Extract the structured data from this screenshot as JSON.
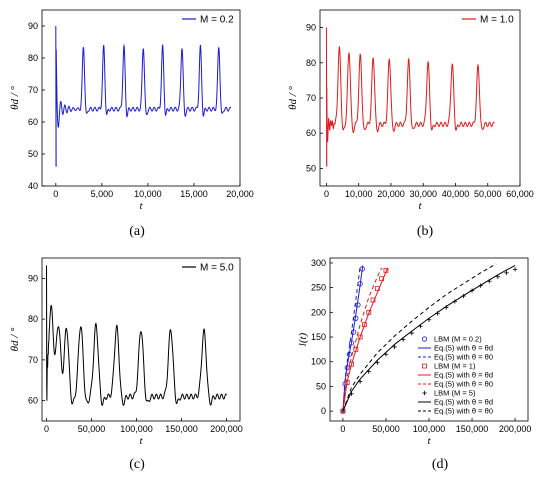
{
  "chart_data": [
    {
      "panel_label": "(a)",
      "type": "line",
      "xlabel": "t",
      "ylabel": "θd / °",
      "xlim": [
        -1500,
        20000
      ],
      "ylim": [
        40,
        95
      ],
      "xticks": [
        0,
        5000,
        10000,
        15000,
        20000
      ],
      "xtick_labels": [
        "0",
        "5,000",
        "10,000",
        "15,000",
        "20,000"
      ],
      "yticks": [
        40,
        50,
        60,
        70,
        80,
        90
      ],
      "ytick_labels": [
        "40",
        "50",
        "60",
        "70",
        "80",
        "90"
      ],
      "grid": false,
      "legend_position": "top-right",
      "series": [
        {
          "name": "M = 0.2",
          "color": "#1b1bd6",
          "start_peak": 90,
          "start_min": 46,
          "baseline": 64,
          "x_end": 19000,
          "peak_times": [
            3000,
            5200,
            7400,
            9500,
            11600,
            13700,
            15700,
            17700
          ],
          "peak_height": 83.5
        }
      ]
    },
    {
      "panel_label": "(b)",
      "type": "line",
      "xlabel": "t",
      "ylabel": "θd / °",
      "xlim": [
        -2000,
        60000
      ],
      "ylim": [
        45,
        95
      ],
      "xticks": [
        0,
        10000,
        20000,
        30000,
        40000,
        50000,
        60000
      ],
      "xtick_labels": [
        "0",
        "10,000",
        "20,000",
        "30,000",
        "40,000",
        "50,000",
        "60,000"
      ],
      "yticks": [
        50,
        60,
        70,
        80,
        90
      ],
      "ytick_labels": [
        "50",
        "60",
        "70",
        "80",
        "90"
      ],
      "grid": false,
      "legend_position": "top-right",
      "series": [
        {
          "name": "M = 1.0",
          "color": "#e01b1b",
          "start_peak": 90,
          "start_min": 50.5,
          "baseline": 62.5,
          "x_end": 52000,
          "peak_times": [
            4000,
            7000,
            10500,
            14500,
            19500,
            25500,
            31500,
            39000,
            47000
          ],
          "peak_heights": [
            84,
            83,
            82,
            81.5,
            81,
            80.5,
            80,
            79.5,
            79
          ]
        }
      ]
    },
    {
      "panel_label": "(c)",
      "type": "line",
      "xlabel": "t",
      "ylabel": "θd / °",
      "xlim": [
        -5000,
        215000
      ],
      "ylim": [
        55,
        95
      ],
      "xticks": [
        0,
        50000,
        100000,
        150000,
        200000
      ],
      "xtick_labels": [
        "0",
        "50,000",
        "100,000",
        "150,000",
        "200,000"
      ],
      "yticks": [
        60,
        70,
        80,
        90
      ],
      "ytick_labels": [
        "60",
        "70",
        "80",
        "90"
      ],
      "grid": false,
      "legend_position": "top-right",
      "series": [
        {
          "name": "M = 5.0",
          "color": "#000000",
          "start_peak": 90,
          "start_min": 60,
          "baseline": 61,
          "x_end": 200000,
          "peak_times": [
            5000,
            13000,
            22000,
            38000,
            55000,
            78000,
            105000,
            138000,
            175000
          ],
          "peak_heights": [
            83,
            80.5,
            79,
            78.5,
            78.5,
            78,
            77.5,
            77.5,
            77
          ]
        }
      ]
    },
    {
      "panel_label": "(d)",
      "type": "line",
      "xlabel": "t",
      "ylabel": "l(t)",
      "xlim": [
        -15000,
        215000
      ],
      "ylim": [
        -20,
        310
      ],
      "xticks": [
        0,
        50000,
        100000,
        150000,
        200000
      ],
      "xtick_labels": [
        "0",
        "50,000",
        "100,000",
        "150,000",
        "200,000"
      ],
      "yticks": [
        0,
        50,
        100,
        150,
        200,
        250,
        300
      ],
      "ytick_labels": [
        "0",
        "50",
        "100",
        "150",
        "200",
        "250",
        "300"
      ],
      "grid": false,
      "legend_position": "bottom-right",
      "series": [
        {
          "name": "LBM (M = 0.2)",
          "color": "#1b1bd6",
          "style": "marker-circle",
          "x": [
            0,
            2500,
            5000,
            7500,
            10000,
            12500,
            15000,
            17500,
            20000,
            22500
          ],
          "y": [
            0,
            55,
            88,
            115,
            138,
            160,
            188,
            215,
            258,
            288
          ]
        },
        {
          "name": "Eq.(5) with θ = θd",
          "color": "#1b1bd6",
          "style": "solid",
          "x": [
            0,
            2500,
            5000,
            10000,
            15000,
            20000,
            23000
          ],
          "y": [
            0,
            60,
            92,
            140,
            195,
            255,
            295
          ]
        },
        {
          "name": "Eq.(5) with θ = θ0",
          "color": "#1b1bd6",
          "style": "dashed",
          "x": [
            0,
            2500,
            5000,
            10000,
            15000,
            20000
          ],
          "y": [
            0,
            65,
            100,
            160,
            225,
            293
          ]
        },
        {
          "name": "LBM (M = 1)",
          "color": "#e01b1b",
          "style": "marker-square",
          "x": [
            0,
            5000,
            10000,
            15000,
            20000,
            25000,
            30000,
            35000,
            40000,
            45000,
            50000
          ],
          "y": [
            0,
            58,
            95,
            125,
            150,
            175,
            200,
            225,
            248,
            268,
            285
          ]
        },
        {
          "name": "Eq.(5) with θ = θd",
          "color": "#e01b1b",
          "style": "solid",
          "x": [
            0,
            5000,
            10000,
            20000,
            30000,
            40000,
            52000
          ],
          "y": [
            0,
            60,
            95,
            150,
            198,
            240,
            290
          ]
        },
        {
          "name": "Eq.(5) with θ = θ0",
          "color": "#e01b1b",
          "style": "dashed",
          "x": [
            0,
            5000,
            10000,
            20000,
            30000,
            40000,
            45000
          ],
          "y": [
            0,
            70,
            110,
            175,
            230,
            272,
            290
          ]
        },
        {
          "name": "LBM (M = 5)",
          "color": "#000000",
          "style": "marker-plus",
          "x": [
            0,
            10000,
            20000,
            30000,
            40000,
            50000,
            60000,
            70000,
            80000,
            90000,
            100000,
            110000,
            120000,
            130000,
            140000,
            150000,
            160000,
            170000,
            180000,
            190000,
            200000
          ],
          "y": [
            0,
            35,
            60,
            80,
            98,
            115,
            130,
            145,
            158,
            172,
            185,
            198,
            210,
            222,
            233,
            244,
            254,
            263,
            272,
            280,
            287
          ]
        },
        {
          "name": "Eq.(5) with θ = θd",
          "color": "#000000",
          "style": "solid",
          "x": [
            0,
            10000,
            20000,
            40000,
            60000,
            80000,
            100000,
            120000,
            140000,
            160000,
            180000,
            200000
          ],
          "y": [
            0,
            40,
            65,
            103,
            135,
            162,
            188,
            212,
            234,
            255,
            276,
            295
          ]
        },
        {
          "name": "Eq.(5) with θ = θ0",
          "color": "#000000",
          "style": "dashed",
          "x": [
            0,
            10000,
            20000,
            40000,
            60000,
            80000,
            100000,
            120000,
            140000,
            160000,
            178000
          ],
          "y": [
            0,
            48,
            75,
            118,
            152,
            182,
            210,
            236,
            258,
            280,
            298
          ]
        }
      ]
    }
  ]
}
